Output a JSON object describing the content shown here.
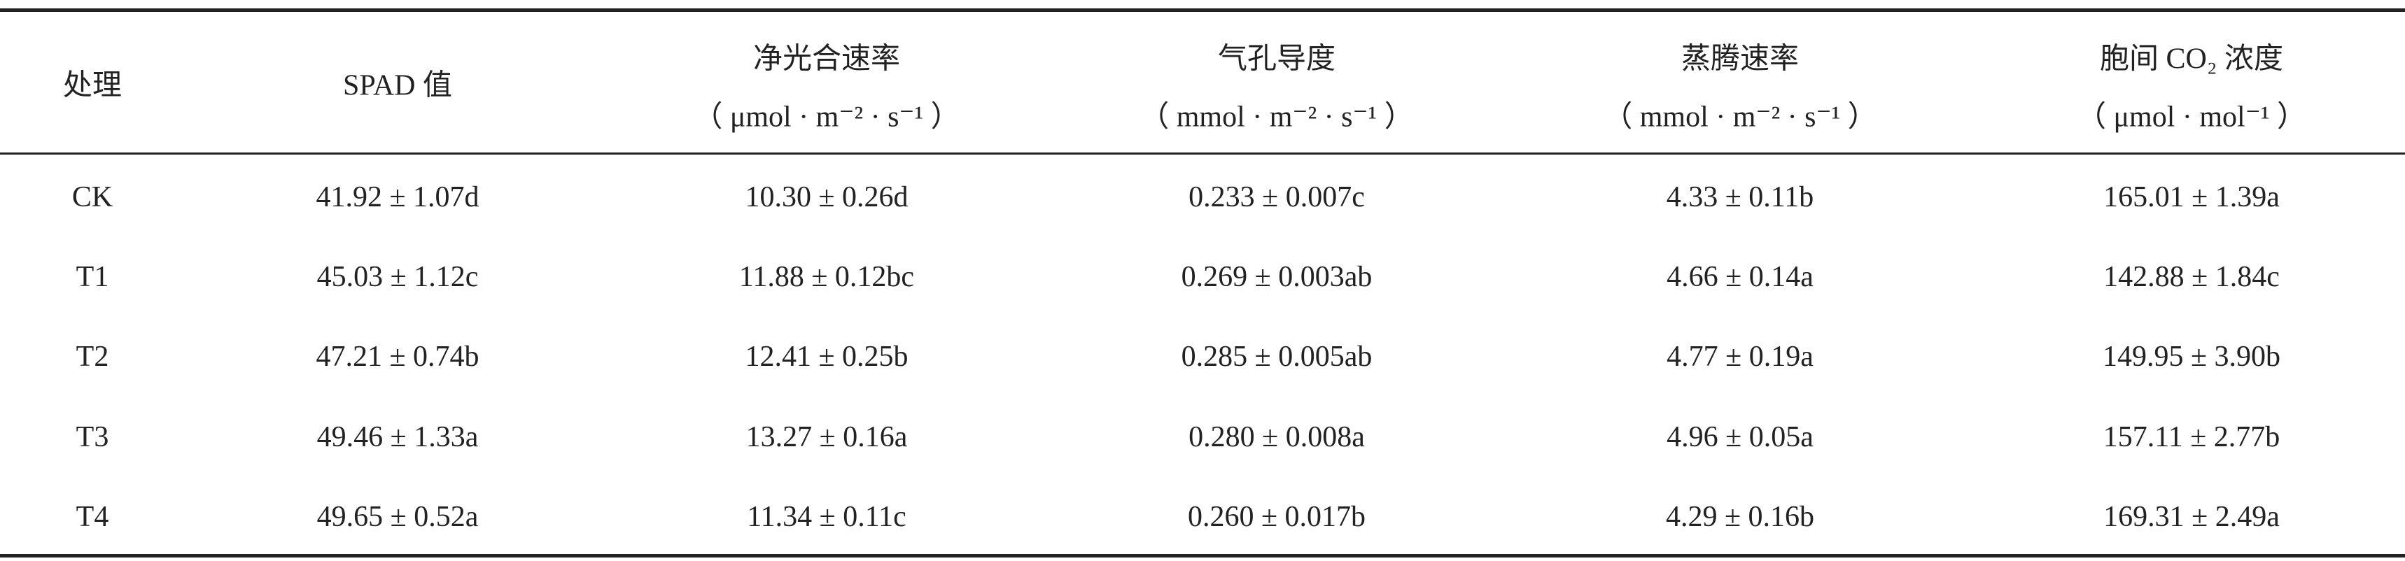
{
  "table": {
    "header": [
      {
        "title": "处理"
      },
      {
        "title": "SPAD 值"
      },
      {
        "title": "净光合速率",
        "unit": "（ μmol · m⁻² · s⁻¹ ）"
      },
      {
        "title": "气孔导度",
        "unit": "（ mmol · m⁻² · s⁻¹ ）"
      },
      {
        "title": "蒸腾速率",
        "unit": "（ mmol · m⁻² · s⁻¹ ）"
      },
      {
        "title": "胞间 CO₂ 浓度",
        "unit": "（ μmol · mol⁻¹ ）"
      }
    ],
    "rows": [
      [
        "CK",
        "41.92 ± 1.07d",
        "10.30 ± 0.26d",
        "0.233 ± 0.007c",
        "4.33 ± 0.11b",
        "165.01 ± 1.39a"
      ],
      [
        "T1",
        "45.03 ± 1.12c",
        "11.88 ± 0.12bc",
        "0.269 ± 0.003ab",
        "4.66 ± 0.14a",
        "142.88 ± 1.84c"
      ],
      [
        "T2",
        "47.21 ± 0.74b",
        "12.41 ± 0.25b",
        "0.285 ± 0.005ab",
        "4.77 ± 0.19a",
        "149.95 ± 3.90b"
      ],
      [
        "T3",
        "49.46 ± 1.33a",
        "13.27 ± 0.16a",
        "0.280 ± 0.008a",
        "4.96 ± 0.05a",
        "157.11 ± 2.77b"
      ],
      [
        "T4",
        "49.65 ± 0.52a",
        "11.34 ± 0.11c",
        "0.260 ± 0.017b",
        "4.29 ± 0.16b",
        "169.31 ± 2.49a"
      ]
    ]
  }
}
